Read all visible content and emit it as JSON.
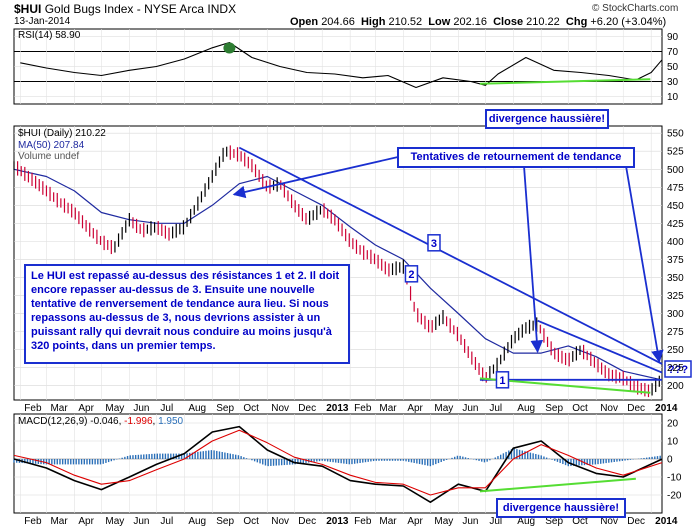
{
  "header": {
    "symbol": "$HUI",
    "name": "Gold Bugs Index - NYSE Arca INDX",
    "date": "13-Jan-2014",
    "open_label": "Open",
    "open": "204.66",
    "high_label": "High",
    "high": "210.52",
    "low_label": "Low",
    "low": "202.16",
    "close_label": "Close",
    "close": "210.22",
    "chg_label": "Chg",
    "chg": "+6.20 (+3.04%)",
    "watermark": "© StockCharts.com"
  },
  "colors": {
    "price_bar": "#000000",
    "down_bar": "#cc0033",
    "ma": "#1f2aa0",
    "trendline": "#1a2fd0",
    "divergence": "#55dd33",
    "macd": "#000000",
    "signal": "#dd0000",
    "histogram": "#2a6fb8",
    "rsi_fill": "#2e7d32",
    "rsi_line": "#000000"
  },
  "chart_data": [
    {
      "type": "line",
      "panel": "rsi",
      "legend": "RSI(14) 58.90",
      "ylim": [
        0,
        100
      ],
      "y_ticks": [
        10,
        30,
        50,
        70,
        90
      ],
      "reference_lines": [
        30,
        70
      ],
      "x_range": [
        "2012-01-25",
        "2014-01-13"
      ],
      "series": [
        {
          "name": "RSI(14)",
          "x": [
            "2012-02-01",
            "2012-03-01",
            "2012-04-01",
            "2012-05-01",
            "2012-06-01",
            "2012-07-01",
            "2012-08-01",
            "2012-09-01",
            "2012-09-20",
            "2012-10-15",
            "2012-11-15",
            "2012-12-15",
            "2013-01-15",
            "2013-02-15",
            "2013-03-15",
            "2013-04-15",
            "2013-05-15",
            "2013-06-15",
            "2013-07-01",
            "2013-07-15",
            "2013-08-15",
            "2013-09-15",
            "2013-10-15",
            "2013-11-15",
            "2013-12-15",
            "2014-01-01",
            "2014-01-13"
          ],
          "y": [
            55,
            48,
            42,
            38,
            45,
            50,
            60,
            75,
            82,
            62,
            50,
            42,
            40,
            35,
            38,
            22,
            35,
            30,
            25,
            40,
            62,
            45,
            42,
            38,
            32,
            42,
            58.9
          ]
        }
      ],
      "annotations": [
        {
          "text": "divergence haussière!",
          "x": "2013-10-01"
        }
      ]
    },
    {
      "type": "line",
      "panel": "price",
      "legend": [
        "$HUI (Daily) 210.22",
        "MA(50) 207.84",
        "Volume undef"
      ],
      "ylim": [
        180,
        560
      ],
      "y_ticks": [
        200,
        225,
        250,
        275,
        300,
        325,
        350,
        375,
        400,
        425,
        450,
        475,
        500,
        525,
        550
      ],
      "x_ticks": [
        "Feb",
        "Mar",
        "Apr",
        "May",
        "Jun",
        "Jul",
        "Aug",
        "Sep",
        "Oct",
        "Nov",
        "Dec",
        "2013",
        "Feb",
        "Mar",
        "Apr",
        "May",
        "Jun",
        "Jul",
        "Aug",
        "Sep",
        "Oct",
        "Nov",
        "Dec",
        "2014"
      ],
      "series": [
        {
          "name": "$HUI (Daily)",
          "x": [
            "2012-01-25",
            "2012-02-15",
            "2012-03-01",
            "2012-03-15",
            "2012-04-01",
            "2012-04-15",
            "2012-05-01",
            "2012-05-15",
            "2012-06-01",
            "2012-06-15",
            "2012-07-01",
            "2012-07-15",
            "2012-08-01",
            "2012-08-15",
            "2012-09-01",
            "2012-09-15",
            "2012-10-01",
            "2012-10-15",
            "2012-11-01",
            "2012-11-15",
            "2012-12-01",
            "2012-12-15",
            "2013-01-01",
            "2013-01-15",
            "2013-02-01",
            "2013-02-15",
            "2013-03-01",
            "2013-03-15",
            "2013-04-01",
            "2013-04-15",
            "2013-05-01",
            "2013-05-15",
            "2013-06-01",
            "2013-06-15",
            "2013-07-01",
            "2013-07-15",
            "2013-08-01",
            "2013-08-15",
            "2013-08-28",
            "2013-09-15",
            "2013-10-01",
            "2013-10-15",
            "2013-11-01",
            "2013-11-15",
            "2013-12-01",
            "2013-12-15",
            "2013-12-31",
            "2014-01-13"
          ],
          "y": [
            505,
            485,
            470,
            455,
            440,
            420,
            400,
            390,
            430,
            415,
            420,
            410,
            420,
            450,
            490,
            525,
            520,
            505,
            475,
            480,
            450,
            430,
            445,
            430,
            400,
            385,
            375,
            360,
            365,
            300,
            280,
            295,
            270,
            240,
            210,
            230,
            265,
            280,
            285,
            245,
            235,
            250,
            230,
            215,
            210,
            198,
            192,
            210.22
          ]
        },
        {
          "name": "MA(50)",
          "x": [
            "2012-01-25",
            "2012-03-01",
            "2012-04-01",
            "2012-05-01",
            "2012-06-01",
            "2012-07-01",
            "2012-08-01",
            "2012-09-01",
            "2012-10-01",
            "2012-11-01",
            "2012-12-01",
            "2013-01-01",
            "2013-02-01",
            "2013-03-01",
            "2013-04-01",
            "2013-05-01",
            "2013-06-01",
            "2013-07-01",
            "2013-08-01",
            "2013-09-01",
            "2013-10-01",
            "2013-11-01",
            "2013-12-01",
            "2014-01-13"
          ],
          "y": [
            500,
            490,
            470,
            440,
            430,
            425,
            425,
            450,
            480,
            490,
            470,
            450,
            420,
            395,
            375,
            335,
            300,
            265,
            245,
            245,
            255,
            240,
            220,
            207.84
          ]
        }
      ],
      "annotations": [
        {
          "text": "Tentatives de retournement de tendance"
        },
        {
          "text": "1"
        },
        {
          "text": "2"
        },
        {
          "text": "3"
        },
        {
          "text": "???"
        },
        {
          "text": "Le HUI est repassé au-dessus des résistances 1 et 2. Il doit encore repasser au-dessus de 3. Ensuite une nouvelle tentative de renversement de tendance aura lieu. Si nous repassons au-dessus de 3, nous devrions assister à un puissant rally qui devrait nous conduire au moins jusqu'à 320 points, dans un premier temps."
        }
      ]
    },
    {
      "type": "line",
      "panel": "macd",
      "legend": {
        "name": "MACD(12,26,9)",
        "macd": "-0.046",
        "signal": "-1.996",
        "hist": "1.950"
      },
      "ylim": [
        -30,
        25
      ],
      "y_ticks": [
        -20,
        -10,
        0,
        10,
        20
      ],
      "series": [
        {
          "name": "MACD",
          "x": [
            "2012-01-25",
            "2012-03-01",
            "2012-04-01",
            "2012-05-01",
            "2012-06-01",
            "2012-07-01",
            "2012-08-01",
            "2012-09-01",
            "2012-10-01",
            "2012-11-01",
            "2012-12-01",
            "2013-01-01",
            "2013-02-01",
            "2013-03-01",
            "2013-04-01",
            "2013-05-01",
            "2013-06-01",
            "2013-07-01",
            "2013-08-01",
            "2013-09-01",
            "2013-10-01",
            "2013-11-01",
            "2013-12-01",
            "2014-01-13"
          ],
          "y": [
            0,
            -5,
            -12,
            -17,
            -10,
            -3,
            3,
            15,
            18,
            5,
            -2,
            -4,
            -12,
            -14,
            -15,
            -24,
            -14,
            -18,
            6,
            10,
            -2,
            -8,
            -10,
            -0.046
          ]
        },
        {
          "name": "Signal",
          "x": [
            "2012-01-25",
            "2012-03-01",
            "2012-04-01",
            "2012-05-01",
            "2012-06-01",
            "2012-07-01",
            "2012-08-01",
            "2012-09-01",
            "2012-10-01",
            "2012-11-01",
            "2012-12-01",
            "2013-01-01",
            "2013-02-01",
            "2013-03-01",
            "2013-04-01",
            "2013-05-01",
            "2013-06-01",
            "2013-07-01",
            "2013-08-01",
            "2013-09-01",
            "2013-10-01",
            "2013-11-01",
            "2013-12-01",
            "2014-01-13"
          ],
          "y": [
            2,
            -2,
            -9,
            -14,
            -12,
            -6,
            0,
            10,
            16,
            9,
            1,
            -3,
            -9,
            -13,
            -14,
            -20,
            -16,
            -16,
            0,
            8,
            2,
            -5,
            -9,
            -1.996
          ]
        }
      ],
      "annotations": [
        {
          "text": "divergence haussière!"
        }
      ]
    }
  ]
}
